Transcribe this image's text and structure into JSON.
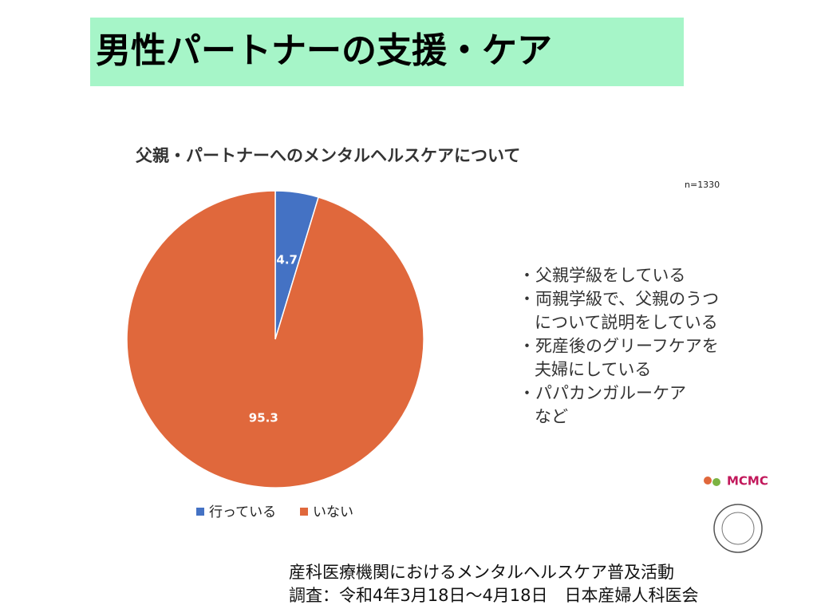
{
  "slide_title": "男性パートナーの支援・ケア",
  "chart_data": {
    "type": "pie",
    "title": "父親・パートナーへのメンタルヘルスケアについて",
    "note": "n=1330",
    "categories": [
      "行っている",
      "いない"
    ],
    "values": [
      4.7,
      95.3
    ],
    "colors": [
      "#4472c4",
      "#e0683c"
    ],
    "legend": "bottom"
  },
  "bullets": [
    [
      "・父親学級をしている"
    ],
    [
      "・両親学級で、父親のうつ",
      "について説明をしている"
    ],
    [
      "・死産後のグリーフケアを",
      "夫婦にしている"
    ],
    [
      "・パパカンガルーケア",
      "など"
    ]
  ],
  "logo": "MCMC",
  "footer": [
    "産科医療機関におけるメンタルヘルスケア普及活動",
    "調査：令和4年3月18日～4月18日　日本産婦人科医会"
  ]
}
